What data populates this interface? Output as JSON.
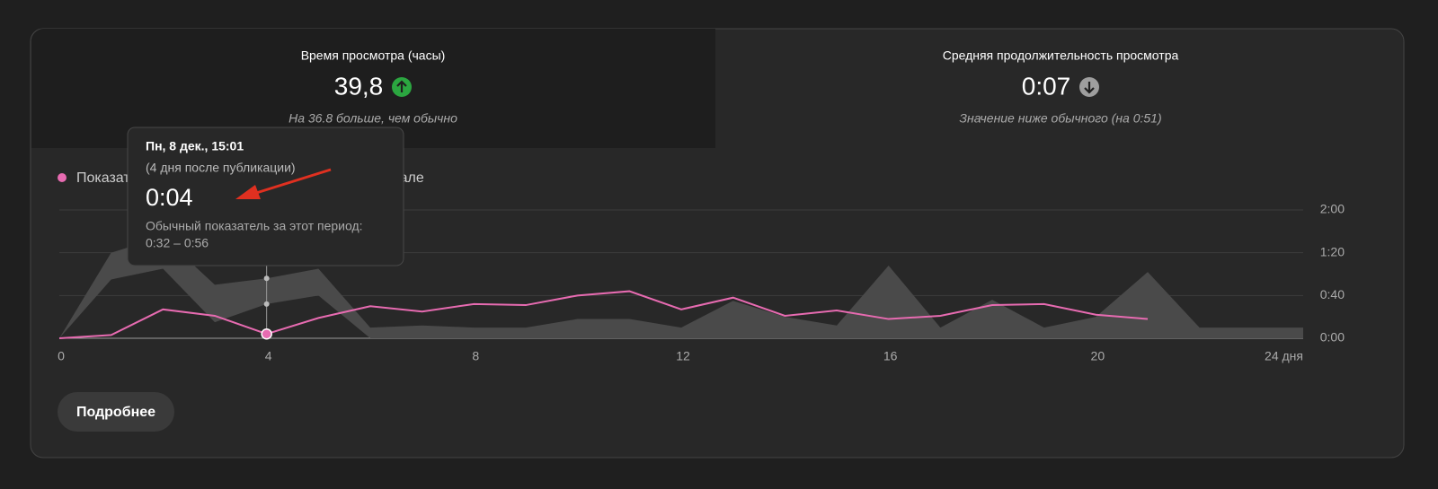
{
  "cards": [
    {
      "title": "Время просмотра (часы)",
      "value": "39,8",
      "trend": "up",
      "note": "На 36.8 больше, чем обычно"
    },
    {
      "title": "Средняя продолжительность просмотра",
      "value": "0:07",
      "trend": "down",
      "note": "Значение ниже обычного (на 0:51)"
    }
  ],
  "chart_data": {
    "type": "line",
    "x": [
      0,
      1,
      2,
      3,
      4,
      5,
      6,
      7,
      8,
      9,
      10,
      11,
      12,
      13,
      14,
      15,
      16,
      17,
      18,
      19,
      20,
      21,
      22,
      23,
      24
    ],
    "series": [
      {
        "name": "Показатели видео и обычные показатели на канале",
        "color": "#e76bb1",
        "values": [
          0,
          3,
          27,
          21,
          4,
          19,
          30,
          25,
          32,
          31,
          40,
          44,
          27,
          38,
          21,
          26,
          18,
          21,
          31,
          32,
          22,
          18,
          null,
          null,
          null
        ]
      }
    ],
    "band": {
      "color": "#4a4a4a",
      "lower": [
        0,
        55,
        65,
        15,
        32,
        40,
        0,
        0,
        0,
        0,
        0,
        0,
        0,
        0,
        0,
        0,
        0,
        0,
        0,
        0,
        0,
        0,
        0,
        0,
        0
      ],
      "upper": [
        0,
        80,
        95,
        50,
        56,
        65,
        10,
        12,
        10,
        10,
        18,
        18,
        10,
        35,
        20,
        12,
        68,
        10,
        36,
        10,
        20,
        62,
        10,
        10,
        10
      ]
    },
    "xlim": [
      0,
      24
    ],
    "xticks": [
      0,
      4,
      8,
      12,
      16,
      20,
      {
        "value": 24,
        "label": "24 дня"
      }
    ],
    "ylim": [
      0,
      120
    ],
    "yticks": [
      {
        "value": 0,
        "label": "0:00"
      },
      {
        "value": 40,
        "label": "0:40"
      },
      {
        "value": 80,
        "label": "1:20"
      },
      {
        "value": 120,
        "label": "2:00"
      }
    ],
    "grid": true
  },
  "tooltip": {
    "date": "Пн, 8 дек., 15:01",
    "since": "(4 дня после публикации)",
    "value": "0:04",
    "range_label": "Обычный показатель за этот период:",
    "range": "0:32 – 0:56"
  },
  "button": "Подробнее"
}
